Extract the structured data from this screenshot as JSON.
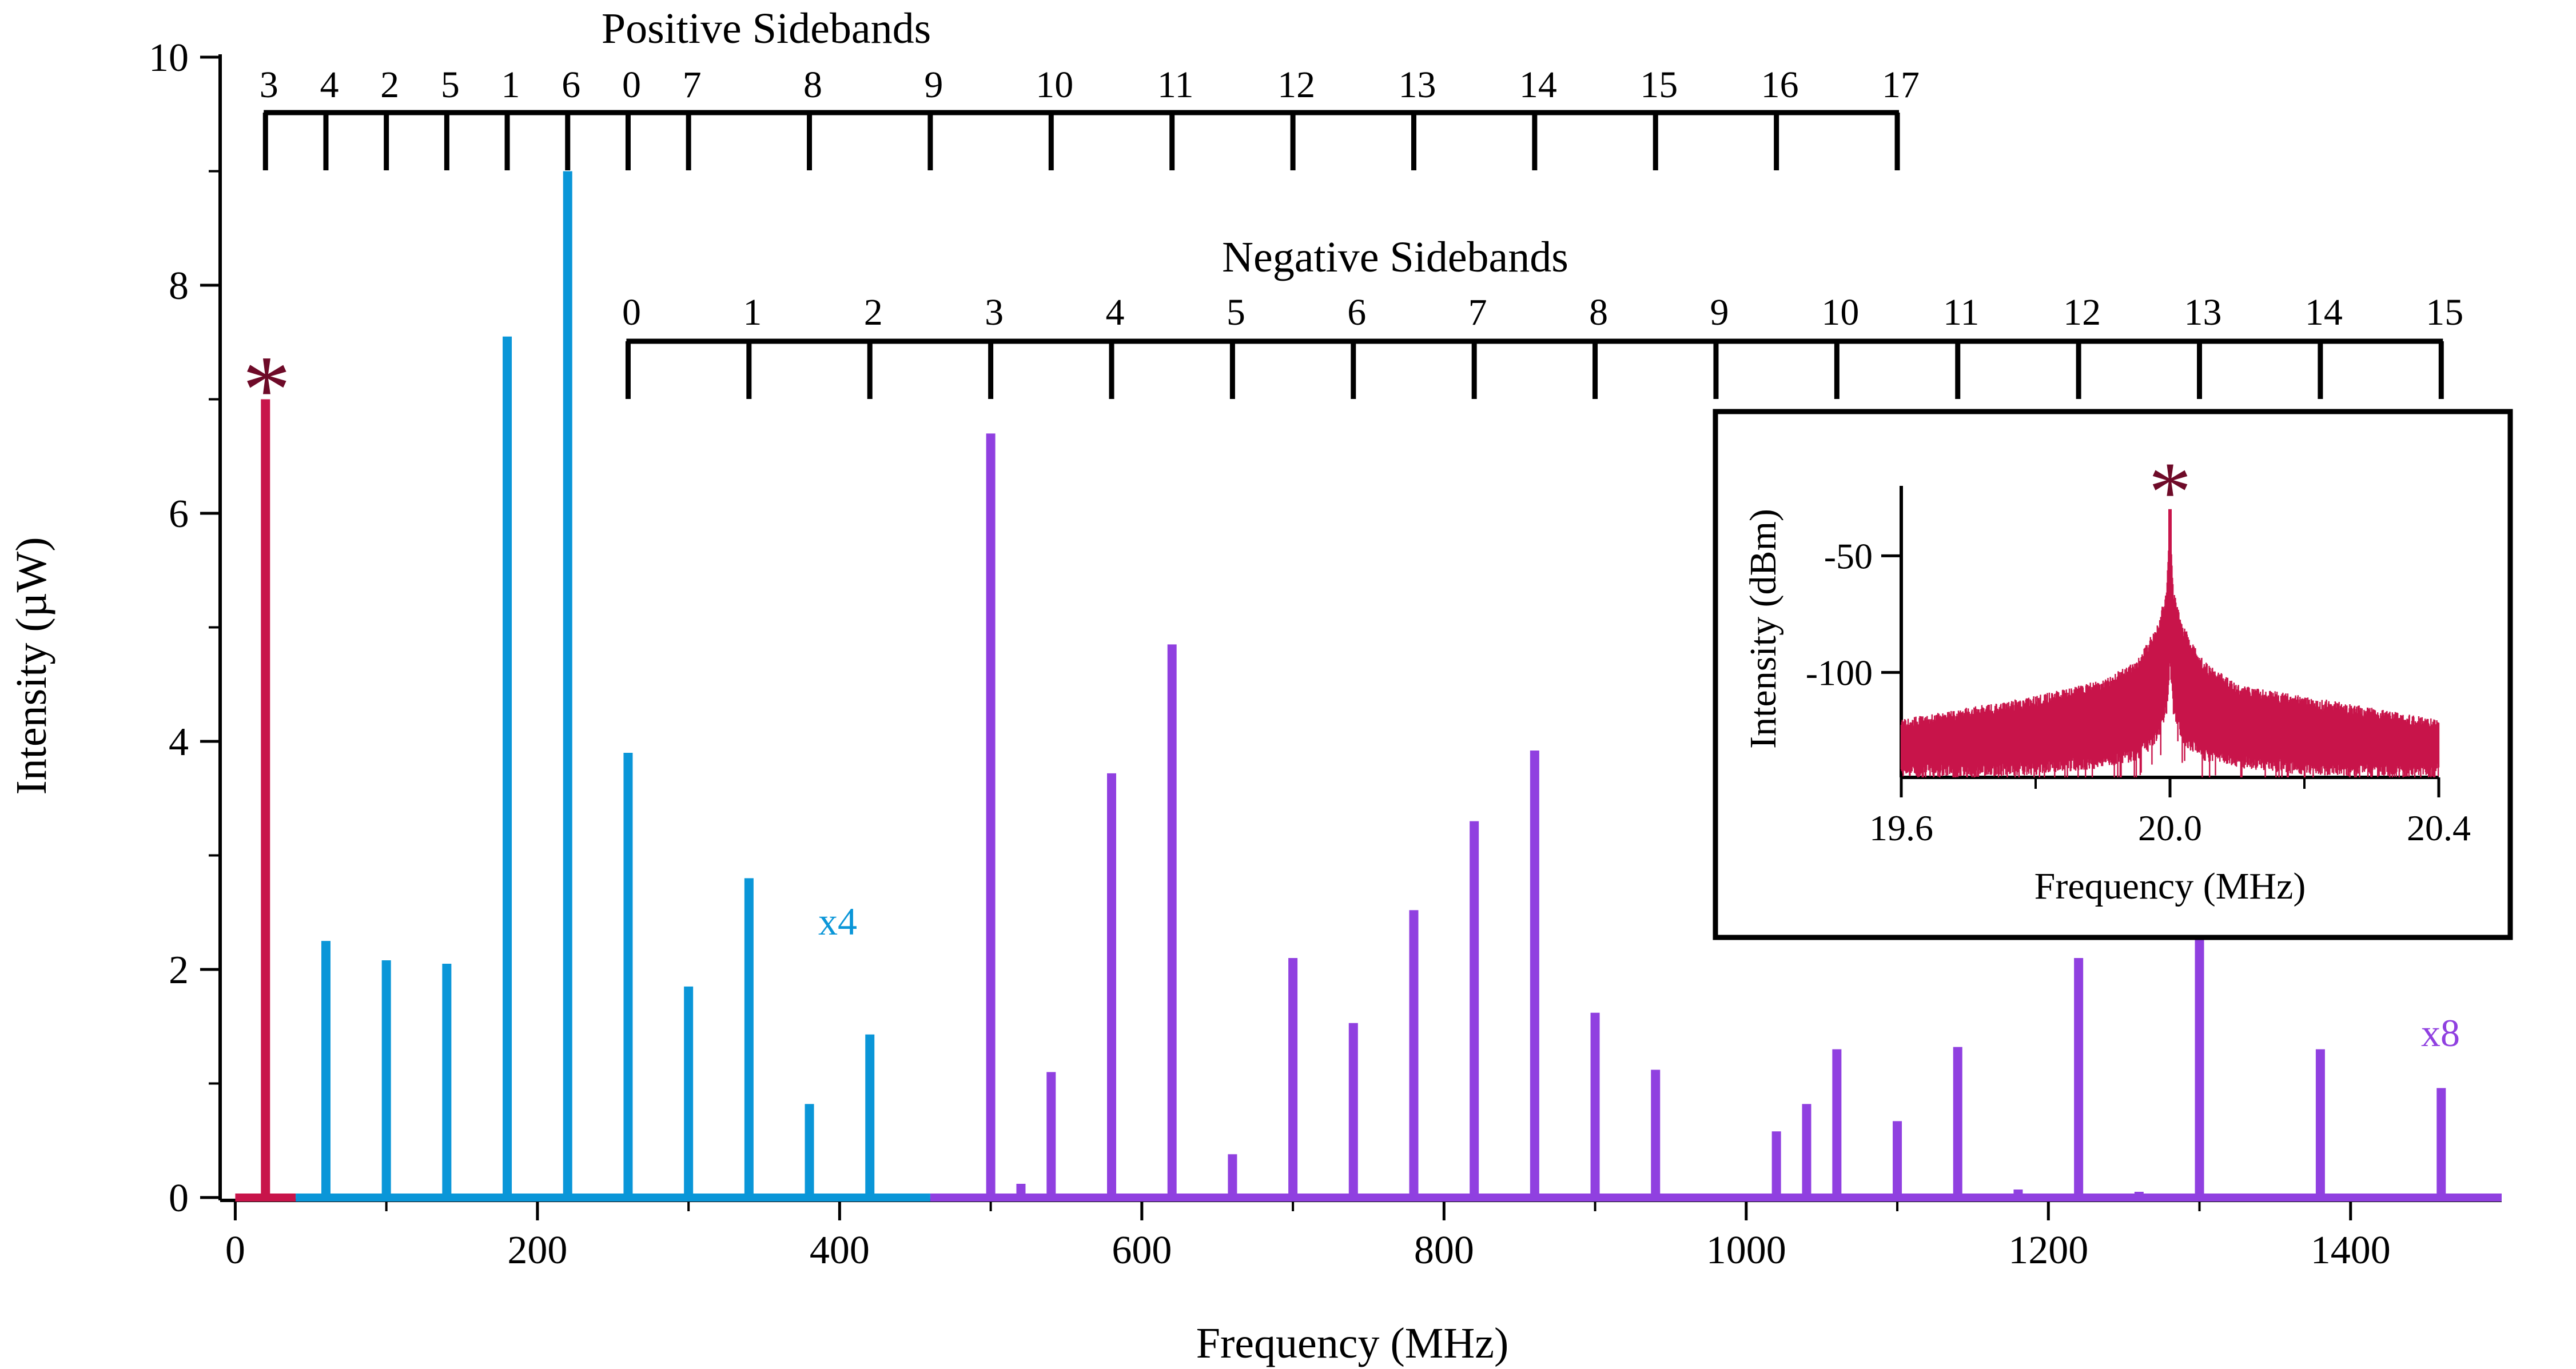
{
  "chart_data": [
    {
      "type": "bar",
      "xlabel": "Frequency (MHz)",
      "ylabel": "Intensity (µW)",
      "xlim": [
        -10,
        1500
      ],
      "ylim": [
        0,
        10
      ],
      "xticks": [
        0,
        200,
        400,
        600,
        800,
        1000,
        1200,
        1400
      ],
      "yticks": [
        0,
        2,
        4,
        6,
        8,
        10
      ],
      "grid": false,
      "colors": {
        "carrier": "#c8144a",
        "positive": "#0a96d8",
        "negative": "#9040e0",
        "marker": "#6e0a28"
      },
      "marker_symbol": "*",
      "series": [
        {
          "key": "carrier",
          "x": [
            20
          ],
          "values": [
            7.0
          ]
        },
        {
          "key": "positive",
          "x": [
            60,
            100,
            140,
            180,
            220,
            260,
            300,
            340,
            380,
            420
          ],
          "values": [
            2.25,
            2.08,
            2.05,
            7.55,
            9.0,
            3.9,
            1.85,
            2.8,
            0.82,
            1.43
          ]
        },
        {
          "key": "negative",
          "x": [
            500,
            520,
            540,
            580,
            620,
            660,
            700,
            740,
            780,
            820,
            860,
            900,
            940,
            1020,
            1040,
            1060,
            1100,
            1140,
            1180,
            1220,
            1260,
            1300,
            1380,
            1460
          ],
          "values": [
            6.7,
            0.12,
            1.1,
            3.72,
            4.85,
            0.38,
            2.1,
            1.53,
            2.52,
            3.3,
            3.92,
            1.62,
            1.12,
            0.58,
            0.82,
            1.3,
            0.67,
            1.32,
            0.07,
            2.1,
            0.05,
            2.35,
            1.3,
            0.96
          ]
        }
      ],
      "baselines": [
        {
          "key": "carrier",
          "x": [
            0,
            40
          ]
        },
        {
          "key": "positive",
          "x": [
            40,
            460
          ]
        },
        {
          "key": "negative",
          "x": [
            460,
            1500
          ]
        }
      ],
      "annotations": [
        {
          "text": "x4",
          "x": 405,
          "y": 2.4,
          "key": "positive"
        },
        {
          "text": "x8",
          "x": 1447,
          "y": 1.4,
          "key": "negative"
        }
      ],
      "positive_sidebands": {
        "title": "Positive Sidebands",
        "labels": [
          "3",
          "4",
          "2",
          "5",
          "1",
          "6",
          "0",
          "7",
          "8",
          "9",
          "10",
          "11",
          "12",
          "13",
          "14",
          "15",
          "16",
          "17"
        ],
        "x": [
          20,
          60,
          100,
          140,
          180,
          220,
          260,
          300,
          380,
          460,
          540,
          620,
          700,
          780,
          860,
          940,
          1020,
          1100
        ]
      },
      "negative_sidebands": {
        "title": "Negative Sidebands",
        "labels": [
          "0",
          "1",
          "2",
          "3",
          "4",
          "5",
          "6",
          "7",
          "8",
          "9",
          "10",
          "11",
          "12",
          "13",
          "14",
          "15"
        ],
        "x": [
          260,
          340,
          420,
          500,
          580,
          660,
          740,
          820,
          900,
          980,
          1060,
          1140,
          1220,
          1300,
          1380,
          1460
        ]
      }
    },
    {
      "type": "line",
      "xlabel": "Frequency (MHz)",
      "ylabel": "Intensity (dBm)",
      "xlim": [
        19.6,
        20.4
      ],
      "ylim": [
        -145,
        -20
      ],
      "xticks": [
        "19.6",
        "20.0",
        "20.4"
      ],
      "yticks": [
        -50,
        -100
      ],
      "color": "#c8144a",
      "marker_symbol": "*",
      "peak": {
        "x": 20.0,
        "y": -30
      },
      "envelope": {
        "x": [
          19.6,
          19.7,
          19.8,
          19.9,
          19.95,
          19.98,
          19.995,
          20.0,
          20.005,
          20.02,
          20.05,
          20.1,
          20.2,
          20.3,
          20.4
        ],
        "upper": [
          -120,
          -115,
          -110,
          -103,
          -95,
          -80,
          -65,
          -30,
          -65,
          -80,
          -95,
          -105,
          -110,
          -115,
          -120
        ],
        "lower": [
          -142,
          -142,
          -141,
          -138,
          -135,
          -128,
          -115,
          -95,
          -115,
          -128,
          -135,
          -138,
          -141,
          -142,
          -142
        ]
      }
    }
  ]
}
